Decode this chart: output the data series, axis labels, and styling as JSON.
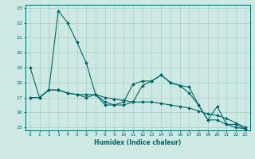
{
  "title": "",
  "xlabel": "Humidex (Indice chaleur)",
  "bg_color": "#cee8e4",
  "line_color": "#006666",
  "grid_color": "#aad4cc",
  "xlim": [
    -0.5,
    23.5
  ],
  "ylim": [
    14.8,
    23.2
  ],
  "yticks": [
    15,
    16,
    17,
    18,
    19,
    20,
    21,
    22,
    23
  ],
  "xticks": [
    0,
    1,
    2,
    3,
    4,
    5,
    6,
    7,
    8,
    9,
    10,
    11,
    12,
    13,
    14,
    15,
    16,
    17,
    18,
    19,
    20,
    21,
    22,
    23
  ],
  "series": [
    {
      "x": [
        0,
        1,
        2,
        3,
        4,
        5,
        6,
        7,
        8,
        9,
        10,
        11,
        12,
        13,
        14,
        15,
        16,
        17,
        18,
        19,
        20,
        21,
        22,
        23
      ],
      "y": [
        19.0,
        17.0,
        17.5,
        22.8,
        22.0,
        20.7,
        19.3,
        17.2,
        16.5,
        16.5,
        16.5,
        16.7,
        17.8,
        18.1,
        18.5,
        18.0,
        17.8,
        17.3,
        16.5,
        15.5,
        15.5,
        15.2,
        15.0,
        14.9
      ]
    },
    {
      "x": [
        0,
        1,
        2,
        3,
        4,
        5,
        6,
        7,
        8,
        9,
        10,
        11,
        12,
        13,
        14,
        15,
        16,
        17,
        18,
        19,
        20,
        21,
        22,
        23
      ],
      "y": [
        17.0,
        17.0,
        17.5,
        17.5,
        17.3,
        17.2,
        17.2,
        17.2,
        17.0,
        16.9,
        16.8,
        16.7,
        16.7,
        16.7,
        16.6,
        16.5,
        16.4,
        16.3,
        16.1,
        15.9,
        15.8,
        15.6,
        15.3,
        15.0
      ]
    },
    {
      "x": [
        0,
        1,
        2,
        3,
        4,
        5,
        6,
        7,
        8,
        9,
        10,
        11,
        12,
        13,
        14,
        15,
        16,
        17,
        18,
        19,
        20,
        21,
        22,
        23
      ],
      "y": [
        17.0,
        17.0,
        17.5,
        17.5,
        17.3,
        17.2,
        17.0,
        17.2,
        16.7,
        16.5,
        16.7,
        17.9,
        18.1,
        18.1,
        18.5,
        18.0,
        17.8,
        17.7,
        16.5,
        15.5,
        16.4,
        15.2,
        15.2,
        14.9
      ]
    }
  ]
}
